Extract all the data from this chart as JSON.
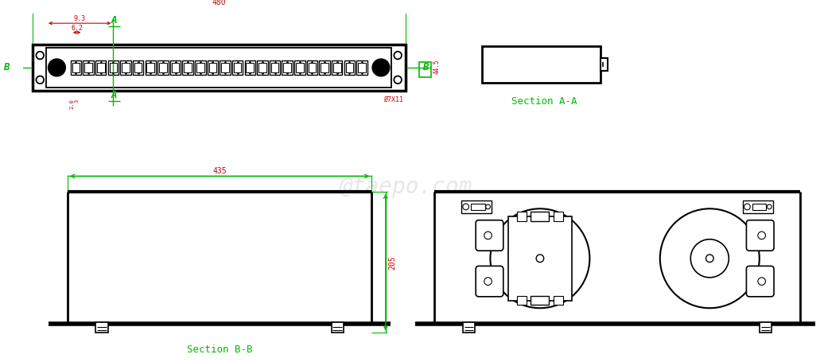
{
  "bg_color": "#ffffff",
  "black": "#000000",
  "green": "#00bb00",
  "red": "#cc0000",
  "gray": "#bbbbbb",
  "dim_480": "480",
  "dim_93": "9.3",
  "dim_62": "6.2",
  "dim_445": "44.5",
  "dim_phi7x11": "Ø7X11",
  "dim_435": "435",
  "dim_205": "205",
  "label_A": "A",
  "label_B": "B",
  "section_AA": "Section A-A",
  "section_BB": "Section B-B",
  "watermark": "@taepo.com",
  "num_connectors": 24
}
